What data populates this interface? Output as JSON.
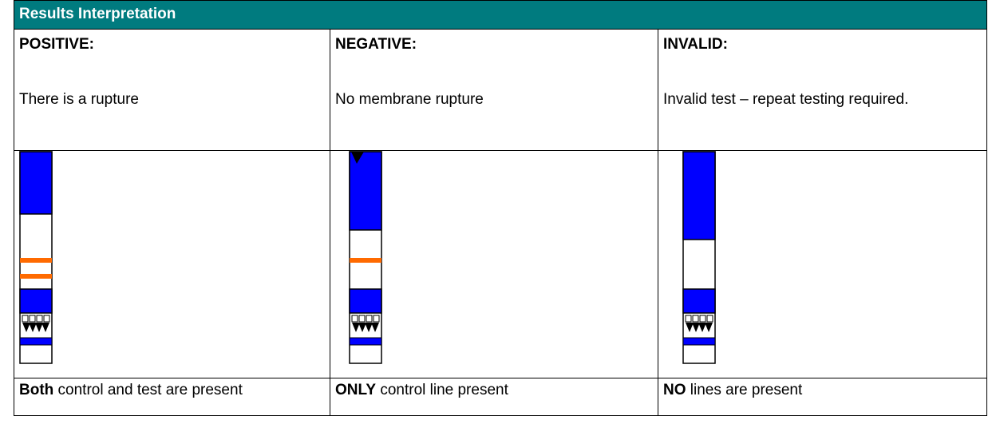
{
  "table": {
    "title": "Results Interpretation",
    "columns": [
      {
        "heading": "POSITIVE:",
        "description": "There is a rupture",
        "result_bold": "Both",
        "result_text": "control and test are present"
      },
      {
        "heading": "NEGATIVE:",
        "description": "No membrane rupture",
        "result_bold": "ONLY",
        "result_text": "control line present"
      },
      {
        "heading": "INVALID:",
        "description": "Invalid test – repeat testing required.",
        "result_bold": "NO",
        "result_text": "lines are present"
      }
    ]
  }
}
